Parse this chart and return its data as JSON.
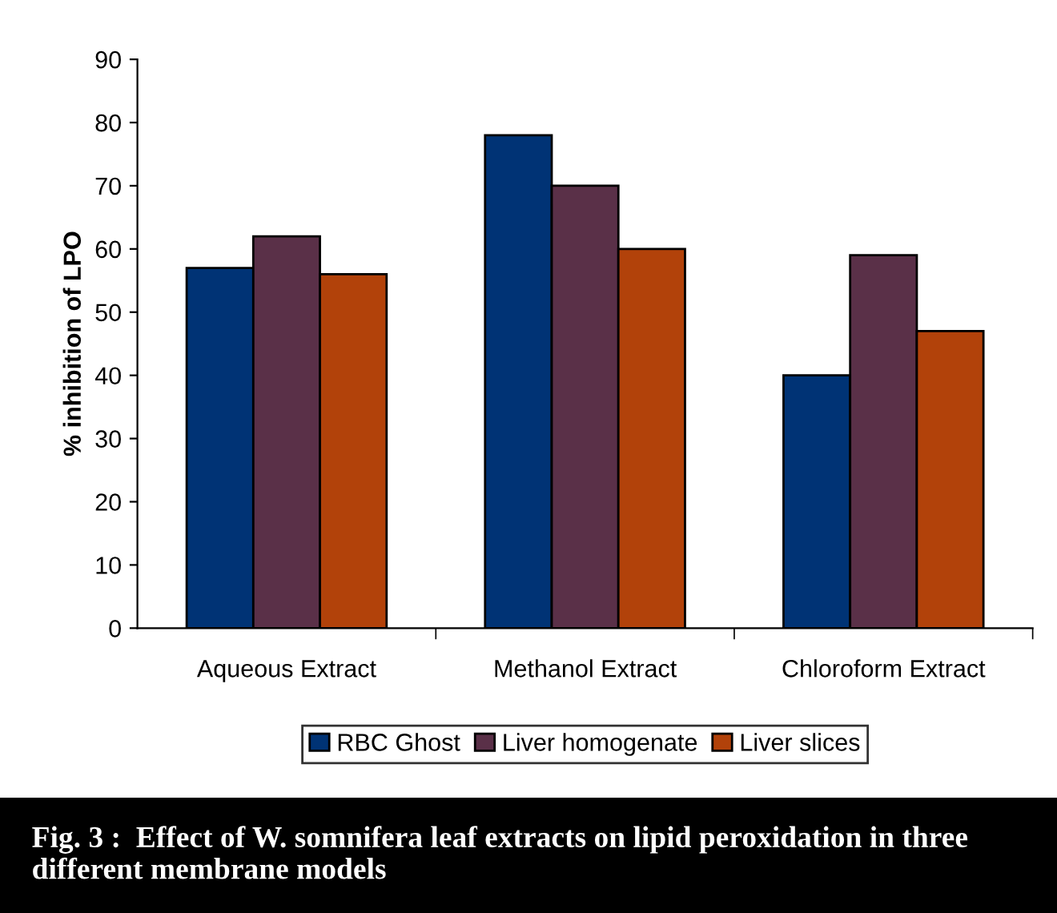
{
  "chart_data": {
    "type": "bar",
    "categories": [
      "Aqueous Extract",
      "Methanol Extract",
      "Chloroform Extract"
    ],
    "series": [
      {
        "name": "RBC Ghost",
        "color": "#003375",
        "values": [
          57,
          78,
          40
        ]
      },
      {
        "name": "Liver homogenate",
        "color": "#5a3048",
        "values": [
          62,
          70,
          59
        ]
      },
      {
        "name": "Liver slices",
        "color": "#b2420a",
        "values": [
          56,
          60,
          47
        ]
      }
    ],
    "ylabel": "% inhibition of LPO",
    "ylim": [
      0,
      90
    ],
    "yticks": [
      0,
      10,
      20,
      30,
      40,
      50,
      60,
      70,
      80,
      90
    ],
    "grid": false,
    "legend": "bottom",
    "annotations": [
      "Fig. 3 :  Effect of W. somnifera leaf extracts on lipid peroxidation in three different membrane models"
    ]
  }
}
